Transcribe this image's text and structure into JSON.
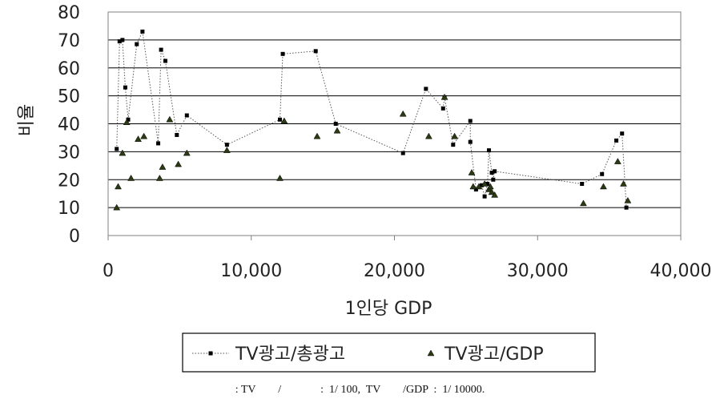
{
  "chart_data": {
    "type": "scatter",
    "title": "",
    "xlabel": "1인당 GDP",
    "ylabel": "비율",
    "xlim": [
      0,
      40000
    ],
    "ylim": [
      0,
      80
    ],
    "x_ticks": [
      0,
      10000,
      20000,
      30000,
      40000
    ],
    "x_tick_labels": [
      "0",
      "10,000",
      "20,000",
      "30,000",
      "40,000"
    ],
    "y_ticks": [
      0,
      10,
      20,
      30,
      40,
      50,
      60,
      70,
      80
    ],
    "y_tick_labels": [
      "0",
      "10",
      "20",
      "30",
      "40",
      "50",
      "60",
      "70",
      "80"
    ],
    "grid": "horizontal",
    "legend_position": "bottom",
    "series": [
      {
        "name": "TV광고/총광고",
        "style": "dotted line with square markers",
        "color": "#000000",
        "points": [
          [
            600,
            31
          ],
          [
            800,
            69.5
          ],
          [
            1000,
            70
          ],
          [
            1200,
            53
          ],
          [
            1400,
            41.5
          ],
          [
            2000,
            68.5
          ],
          [
            2400,
            73
          ],
          [
            3500,
            33
          ],
          [
            3700,
            66.5
          ],
          [
            4000,
            62.5
          ],
          [
            4800,
            36
          ],
          [
            5500,
            43
          ],
          [
            8300,
            32.5
          ],
          [
            12000,
            41.5
          ],
          [
            12200,
            65
          ],
          [
            14500,
            66
          ],
          [
            15900,
            40
          ],
          [
            20600,
            29.5
          ],
          [
            22200,
            52.5
          ],
          [
            23400,
            45.5
          ],
          [
            23500,
            49.5
          ],
          [
            24100,
            32.5
          ],
          [
            25300,
            41
          ],
          [
            25300,
            33.5
          ],
          [
            25700,
            16.5
          ],
          [
            26100,
            18
          ],
          [
            26300,
            14
          ],
          [
            26500,
            18.5
          ],
          [
            26600,
            30.5
          ],
          [
            26800,
            22.5
          ],
          [
            26900,
            20
          ],
          [
            27000,
            23
          ],
          [
            33100,
            18.5
          ],
          [
            34500,
            22
          ],
          [
            35500,
            34
          ],
          [
            35900,
            36.5
          ],
          [
            36200,
            10
          ]
        ]
      },
      {
        "name": "TV광고/GDP",
        "style": "triangle markers",
        "color": "#2b3a12",
        "points": [
          [
            600,
            10
          ],
          [
            700,
            17.5
          ],
          [
            1000,
            29.5
          ],
          [
            1300,
            40.5
          ],
          [
            1600,
            20.5
          ],
          [
            2100,
            34.5
          ],
          [
            2500,
            35.5
          ],
          [
            3600,
            20.5
          ],
          [
            3800,
            24.5
          ],
          [
            4300,
            41.5
          ],
          [
            4900,
            25.5
          ],
          [
            5500,
            29.5
          ],
          [
            8300,
            30.5
          ],
          [
            12000,
            20.5
          ],
          [
            12300,
            41
          ],
          [
            14600,
            35.5
          ],
          [
            16000,
            37.5
          ],
          [
            20600,
            43.5
          ],
          [
            22400,
            35.5
          ],
          [
            23500,
            49.5
          ],
          [
            24200,
            35.5
          ],
          [
            25400,
            22.5
          ],
          [
            25500,
            17.5
          ],
          [
            25900,
            17.5
          ],
          [
            26300,
            18.5
          ],
          [
            26600,
            16.5
          ],
          [
            26700,
            17.5
          ],
          [
            26800,
            15.5
          ],
          [
            27000,
            14.5
          ],
          [
            33200,
            11.5
          ],
          [
            34600,
            17.5
          ],
          [
            35600,
            26.5
          ],
          [
            36000,
            18.5
          ],
          [
            36300,
            12.5
          ]
        ]
      }
    ]
  },
  "footnote": ": TV        /              :  1/ 100,  TV        /GDP  :  1/ 10000."
}
